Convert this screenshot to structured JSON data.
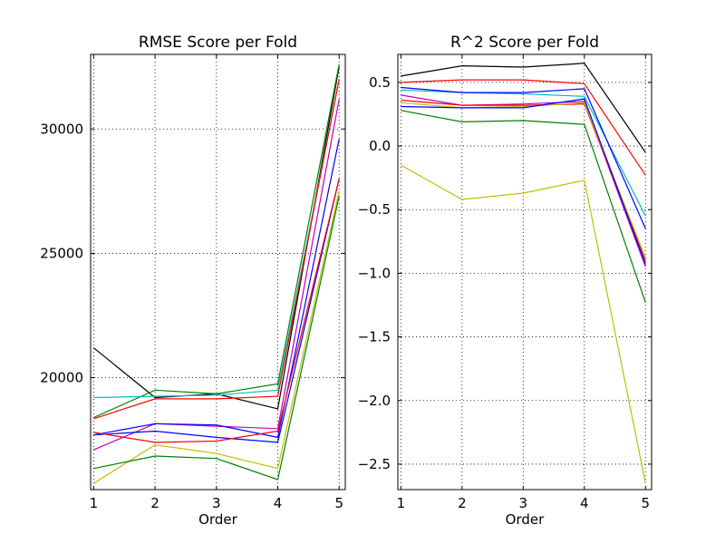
{
  "chart_data": [
    {
      "type": "line",
      "title": "RMSE Score per Fold",
      "xlabel": "Order",
      "ylabel": "",
      "x": [
        1,
        2,
        3,
        4,
        5
      ],
      "xlim": [
        0.95,
        5.1
      ],
      "ylim": [
        15500,
        33000
      ],
      "xticks": [
        "1",
        "2",
        "3",
        "4",
        "5"
      ],
      "yticks": [
        20000,
        25000,
        30000
      ],
      "ytick_labels": [
        "20000",
        "25000",
        "30000"
      ],
      "grid": true,
      "series": [
        {
          "color": "#000000",
          "values": [
            21200,
            19200,
            19350,
            18750,
            32500
          ]
        },
        {
          "color": "#008000",
          "values": [
            18400,
            19500,
            19350,
            19750,
            32600
          ]
        },
        {
          "color": "#00bfbf",
          "values": [
            19200,
            19250,
            19300,
            19500,
            32000
          ]
        },
        {
          "color": "#ff0000",
          "values": [
            18350,
            19150,
            19150,
            19250,
            32000
          ]
        },
        {
          "color": "#bf00bf",
          "values": [
            17100,
            18150,
            18050,
            17950,
            31200
          ]
        },
        {
          "color": "#0000ff",
          "values": [
            17700,
            18150,
            18100,
            17600,
            29600
          ]
        },
        {
          "color": "#0000ff",
          "values": [
            17700,
            17850,
            17600,
            17400,
            28000
          ]
        },
        {
          "color": "#ff0000",
          "values": [
            17800,
            17400,
            17450,
            17850,
            28000
          ]
        },
        {
          "color": "#bfbf00",
          "values": [
            15750,
            17300,
            16950,
            16350,
            27500
          ]
        },
        {
          "color": "#008000",
          "values": [
            16350,
            16850,
            16750,
            15900,
            27300
          ]
        }
      ]
    },
    {
      "type": "line",
      "title": "R^2 Score per Fold",
      "xlabel": "Order",
      "ylabel": "",
      "x": [
        1,
        2,
        3,
        4,
        5
      ],
      "xlim": [
        0.95,
        5.1
      ],
      "ylim": [
        -2.7,
        0.72
      ],
      "xticks": [
        "1",
        "2",
        "3",
        "4",
        "5"
      ],
      "yticks": [
        0.5,
        0.0,
        -0.5,
        -1.0,
        -1.5,
        -2.0,
        -2.5
      ],
      "ytick_labels": [
        "0.5",
        "0.0",
        "−0.5",
        "−1.0",
        "−1.5",
        "−2.0",
        "−2.5"
      ],
      "grid": true,
      "series": [
        {
          "color": "#000000",
          "values": [
            0.55,
            0.63,
            0.62,
            0.65,
            -0.05
          ]
        },
        {
          "color": "#ff0000",
          "values": [
            0.5,
            0.52,
            0.52,
            0.49,
            -0.23
          ]
        },
        {
          "color": "#00bfbf",
          "values": [
            0.44,
            0.42,
            0.41,
            0.39,
            -0.55
          ]
        },
        {
          "color": "#0000ff",
          "values": [
            0.46,
            0.42,
            0.42,
            0.45,
            -0.65
          ]
        },
        {
          "color": "#bf00bf",
          "values": [
            0.4,
            0.32,
            0.33,
            0.35,
            -0.95
          ]
        },
        {
          "color": "#ff0000",
          "values": [
            0.36,
            0.32,
            0.32,
            0.33,
            -0.9
          ]
        },
        {
          "color": "#bfbf00",
          "values": [
            0.34,
            0.3,
            0.31,
            0.34,
            -0.88
          ]
        },
        {
          "color": "#0000ff",
          "values": [
            0.31,
            0.3,
            0.3,
            0.37,
            -0.93
          ]
        },
        {
          "color": "#008000",
          "values": [
            0.28,
            0.19,
            0.2,
            0.17,
            -1.23
          ]
        },
        {
          "color": "#bfbf00",
          "values": [
            -0.15,
            -0.42,
            -0.37,
            -0.27,
            -2.65
          ]
        }
      ]
    }
  ]
}
